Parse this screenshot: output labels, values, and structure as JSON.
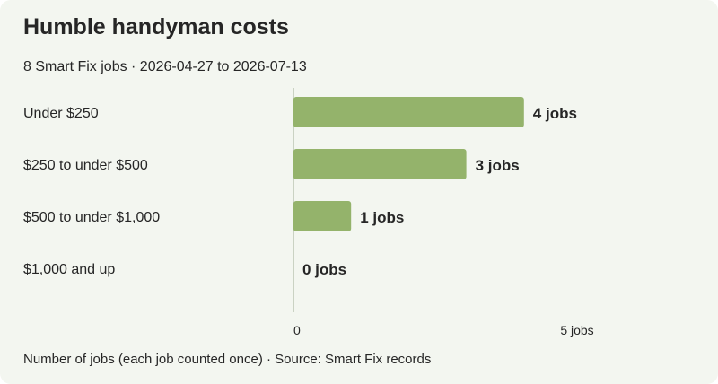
{
  "title": "Humble handyman costs",
  "subtitle": "8 Smart Fix jobs · 2026-04-27 to 2026-07-13",
  "footnote": "Number of jobs (each job counted once) · Source: Smart Fix records",
  "colors": {
    "background": "#f3f6f0",
    "bar": "#94b36b",
    "axis": "#bcc5b4",
    "text": "#262626"
  },
  "chart_data": {
    "type": "bar",
    "orientation": "horizontal",
    "categories": [
      "Under $250",
      "$250 to under $500",
      "$500 to under $1,000",
      "$1,000 and up"
    ],
    "values": [
      4,
      3,
      1,
      0
    ],
    "value_labels": [
      "4 jobs",
      "3 jobs",
      "1 jobs",
      "0 jobs"
    ],
    "xlim": [
      0,
      5
    ],
    "x_ticks": [
      {
        "value": 0,
        "label": "0"
      },
      {
        "value": 5,
        "label": "5 jobs"
      }
    ],
    "grid": false,
    "legend": "none"
  }
}
